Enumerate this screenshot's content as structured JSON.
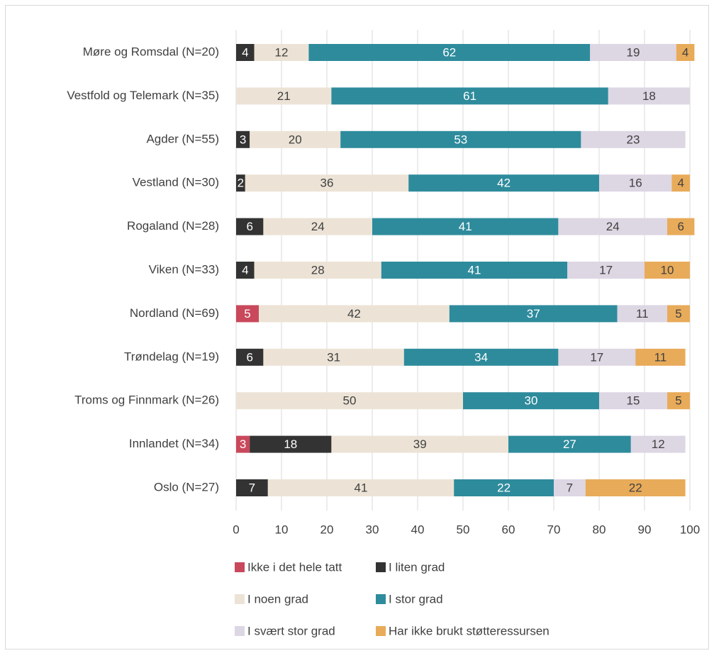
{
  "chart_data": {
    "type": "stacked_barh",
    "categories": [
      "Møre og Romsdal (N=20)",
      "Vestfold  og Telemark (N=35)",
      "Agder (N=55)",
      "Vestland (N=30)",
      "Rogaland (N=28)",
      "Viken (N=33)",
      "Nordland (N=69)",
      "Trøndelag (N=19)",
      "Troms og Finnmark (N=26)",
      "Innlandet (N=34)",
      "Oslo (N=27)"
    ],
    "series": [
      {
        "name": "Ikke i det hele tatt",
        "color": "#c9485b",
        "values": [
          null,
          null,
          null,
          null,
          null,
          null,
          5,
          null,
          null,
          3,
          null
        ]
      },
      {
        "name": "I liten grad",
        "color": "#333333",
        "values": [
          4,
          null,
          3,
          2,
          6,
          4,
          null,
          6,
          null,
          18,
          7
        ]
      },
      {
        "name": "I noen grad",
        "color": "#ece3d6",
        "values": [
          12,
          21,
          20,
          36,
          24,
          28,
          42,
          31,
          50,
          39,
          41
        ]
      },
      {
        "name": "I stor grad",
        "color": "#2e8b9c",
        "values": [
          62,
          61,
          53,
          42,
          41,
          41,
          37,
          34,
          30,
          27,
          22
        ]
      },
      {
        "name": "I svært stor grad",
        "color": "#ddd6e3",
        "values": [
          19,
          18,
          23,
          16,
          24,
          17,
          11,
          17,
          15,
          12,
          7
        ]
      },
      {
        "name": "Har ikke brukt støtteressursen",
        "color": "#e8ab5a",
        "values": [
          4,
          null,
          null,
          4,
          6,
          10,
          5,
          11,
          5,
          null,
          22
        ]
      }
    ],
    "xlim": [
      0,
      100
    ],
    "xticks": [
      0,
      10,
      20,
      30,
      40,
      50,
      60,
      70,
      80,
      90,
      100
    ],
    "grid": true
  }
}
